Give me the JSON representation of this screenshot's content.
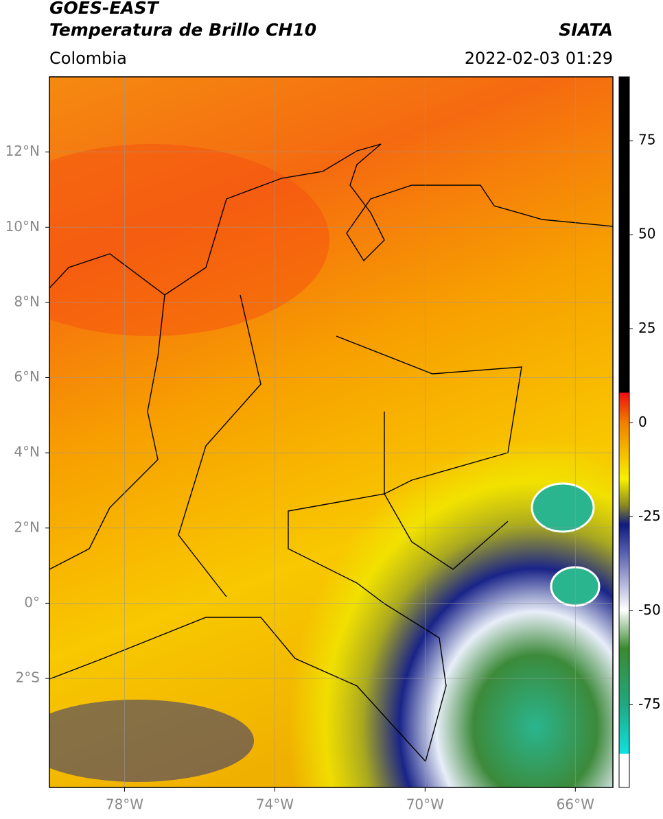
{
  "header": {
    "title": "GOES-EAST",
    "subtitle": "Temperatura de Brillo CH10",
    "region": "Colombia",
    "source": "SIATA",
    "datetime": "2022-02-03 01:29"
  },
  "map": {
    "xlim": [
      -80,
      -65
    ],
    "ylim": [
      -4.9,
      14
    ],
    "xticks": [
      {
        "value": -78,
        "label": "78°W"
      },
      {
        "value": -74,
        "label": "74°W"
      },
      {
        "value": -70,
        "label": "70°W"
      },
      {
        "value": -66,
        "label": "66°W"
      }
    ],
    "yticks": [
      {
        "value": 12,
        "label": "12°N"
      },
      {
        "value": 10,
        "label": "10°N"
      },
      {
        "value": 8,
        "label": "8°N"
      },
      {
        "value": 6,
        "label": "6°N"
      },
      {
        "value": 4,
        "label": "4°N"
      },
      {
        "value": 2,
        "label": "2°N"
      },
      {
        "value": 0,
        "label": "0°"
      },
      {
        "value": -2,
        "label": "2°S"
      }
    ],
    "grid": true
  },
  "colorbar": {
    "lim": [
      -97,
      92
    ],
    "ticks": [
      75,
      50,
      25,
      0,
      -25,
      -50,
      -75
    ]
  }
}
